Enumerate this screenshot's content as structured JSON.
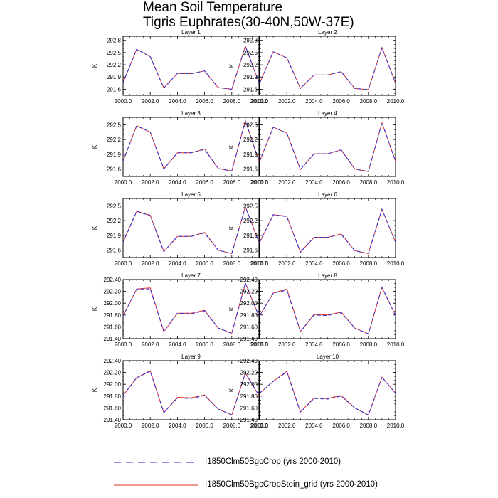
{
  "title": {
    "line1": "Mean Soil Temperature",
    "line2": "Tigris Euphrates(30-40N,50W-37E)"
  },
  "colors": {
    "series_crop": "#2a2ad6",
    "series_stein": "#e8322b",
    "axis": "#000000"
  },
  "legend": [
    {
      "label": "I1850Clm50BgcCrop (yrs 2000-2010)",
      "style": "dashed",
      "color": "#2a2ad6"
    },
    {
      "label": "I1850Clm50BgcCropStein_grid (yrs 2000-2010)",
      "style": "solid",
      "color": "#e8322b"
    }
  ],
  "chart_data": [
    {
      "type": "line",
      "title": "Layer 1",
      "ylabel": "K",
      "xlim": [
        2000,
        2010
      ],
      "ylim": [
        291.45,
        292.9
      ],
      "yticks": [
        "291.6",
        "291.9",
        "292.2",
        "292.5",
        "292.8"
      ],
      "ytick_values": [
        291.6,
        291.9,
        292.2,
        292.5,
        292.8
      ],
      "xticks": [
        "2000.0",
        "2002.0",
        "2004.0",
        "2006.0",
        "2008.0",
        "2010.0"
      ],
      "x": [
        2000,
        2001,
        2002,
        2003,
        2004,
        2005,
        2006,
        2007,
        2008,
        2009,
        2010
      ],
      "series": [
        {
          "name": "I1850Clm50BgcCrop (yrs 2000-2010)",
          "values": [
            291.76,
            292.58,
            292.4,
            291.63,
            291.99,
            291.98,
            292.05,
            291.64,
            291.6,
            292.66,
            291.76
          ]
        },
        {
          "name": "I1850Clm50BgcCropStein_grid (yrs 2000-2010)",
          "values": [
            291.76,
            292.58,
            292.4,
            291.63,
            291.99,
            291.98,
            292.05,
            291.64,
            291.6,
            292.66,
            291.76
          ]
        }
      ]
    },
    {
      "type": "line",
      "title": "Layer 2",
      "ylabel": "K",
      "xlim": [
        2000,
        2010
      ],
      "ylim": [
        291.45,
        292.9
      ],
      "yticks": [
        "291.6",
        "291.9",
        "292.2",
        "292.5",
        "292.8"
      ],
      "ytick_values": [
        291.6,
        291.9,
        292.2,
        292.5,
        292.8
      ],
      "xticks": [
        "2000.0",
        "2002.0",
        "2004.0",
        "2006.0",
        "2008.0",
        "2010.0"
      ],
      "x": [
        2000,
        2001,
        2002,
        2003,
        2004,
        2005,
        2006,
        2007,
        2008,
        2009,
        2010
      ],
      "series": [
        {
          "name": "I1850Clm50BgcCrop (yrs 2000-2010)",
          "values": [
            291.75,
            292.52,
            292.37,
            291.62,
            291.95,
            291.95,
            292.03,
            291.62,
            291.59,
            292.62,
            291.75
          ]
        },
        {
          "name": "I1850Clm50BgcCropStein_grid (yrs 2000-2010)",
          "values": [
            291.75,
            292.52,
            292.37,
            291.62,
            291.95,
            291.95,
            292.03,
            291.62,
            291.59,
            292.62,
            291.75
          ]
        }
      ]
    },
    {
      "type": "line",
      "title": "Layer 3",
      "ylabel": "K",
      "xlim": [
        2000,
        2010
      ],
      "ylim": [
        291.45,
        292.65
      ],
      "yticks": [
        "291.6",
        "291.9",
        "292.2",
        "292.5"
      ],
      "ytick_values": [
        291.6,
        291.9,
        292.2,
        292.5
      ],
      "xticks": [
        "2000.0",
        "2002.0",
        "2004.0",
        "2006.0",
        "2008.0",
        "2010.0"
      ],
      "x": [
        2000,
        2001,
        2002,
        2003,
        2004,
        2005,
        2006,
        2007,
        2008,
        2009,
        2010
      ],
      "series": [
        {
          "name": "I1850Clm50BgcCrop (yrs 2000-2010)",
          "values": [
            291.76,
            292.48,
            292.35,
            291.6,
            291.93,
            291.93,
            292.0,
            291.61,
            291.56,
            292.58,
            291.76
          ]
        },
        {
          "name": "I1850Clm50BgcCropStein_grid (yrs 2000-2010)",
          "values": [
            291.76,
            292.48,
            292.35,
            291.6,
            291.93,
            291.93,
            292.01,
            291.61,
            291.56,
            292.58,
            291.76
          ]
        }
      ]
    },
    {
      "type": "line",
      "title": "Layer 4",
      "ylabel": "K",
      "xlim": [
        2000,
        2010
      ],
      "ylim": [
        291.45,
        292.65
      ],
      "yticks": [
        "291.6",
        "291.9",
        "292.2",
        "292.5"
      ],
      "ytick_values": [
        291.6,
        291.9,
        292.2,
        292.5
      ],
      "xticks": [
        "2000.0",
        "2002.0",
        "2004.0",
        "2006.0",
        "2008.0",
        "2010.0"
      ],
      "x": [
        2000,
        2001,
        2002,
        2003,
        2004,
        2005,
        2006,
        2007,
        2008,
        2009,
        2010
      ],
      "series": [
        {
          "name": "I1850Clm50BgcCrop (yrs 2000-2010)",
          "values": [
            291.76,
            292.45,
            292.33,
            291.59,
            291.91,
            291.91,
            291.99,
            291.6,
            291.55,
            292.54,
            291.76
          ]
        },
        {
          "name": "I1850Clm50BgcCropStein_grid (yrs 2000-2010)",
          "values": [
            291.76,
            292.45,
            292.33,
            291.59,
            291.91,
            291.91,
            291.99,
            291.6,
            291.55,
            292.54,
            291.76
          ]
        }
      ]
    },
    {
      "type": "line",
      "title": "Layer 5",
      "ylabel": "K",
      "xlim": [
        2000,
        2010
      ],
      "ylim": [
        291.45,
        292.65
      ],
      "yticks": [
        "291.6",
        "291.9",
        "292.2",
        "292.5"
      ],
      "ytick_values": [
        291.6,
        291.9,
        292.2,
        292.5
      ],
      "xticks": [
        "2000.0",
        "2002.0",
        "2004.0",
        "2006.0",
        "2008.0",
        "2010.0"
      ],
      "x": [
        2000,
        2001,
        2002,
        2003,
        2004,
        2005,
        2006,
        2007,
        2008,
        2009,
        2010
      ],
      "series": [
        {
          "name": "I1850Clm50BgcCrop (yrs 2000-2010)",
          "values": [
            291.76,
            292.39,
            292.3,
            291.57,
            291.88,
            291.88,
            291.95,
            291.6,
            291.53,
            292.48,
            291.76
          ]
        },
        {
          "name": "I1850Clm50BgcCropStein_grid (yrs 2000-2010)",
          "values": [
            291.76,
            292.39,
            292.31,
            291.57,
            291.88,
            291.88,
            291.96,
            291.6,
            291.53,
            292.48,
            291.76
          ]
        }
      ]
    },
    {
      "type": "line",
      "title": "Layer 6",
      "ylabel": "K",
      "xlim": [
        2000,
        2010
      ],
      "ylim": [
        291.45,
        292.65
      ],
      "yticks": [
        "291.6",
        "291.9",
        "292.2",
        "292.5"
      ],
      "ytick_values": [
        291.6,
        291.9,
        292.2,
        292.5
      ],
      "xticks": [
        "2000.0",
        "2002.0",
        "2004.0",
        "2006.0",
        "2008.0",
        "2010.0"
      ],
      "x": [
        2000,
        2001,
        2002,
        2003,
        2004,
        2005,
        2006,
        2007,
        2008,
        2009,
        2010
      ],
      "series": [
        {
          "name": "I1850Clm50BgcCrop (yrs 2000-2010)",
          "values": [
            291.76,
            292.32,
            292.28,
            291.56,
            291.86,
            291.86,
            291.92,
            291.59,
            291.53,
            292.43,
            291.76
          ]
        },
        {
          "name": "I1850Clm50BgcCropStein_grid (yrs 2000-2010)",
          "values": [
            291.76,
            292.32,
            292.29,
            291.56,
            291.86,
            291.86,
            291.93,
            291.59,
            291.53,
            292.43,
            291.76
          ]
        }
      ]
    },
    {
      "type": "line",
      "title": "Layer 7",
      "ylabel": "K",
      "xlim": [
        2000,
        2010
      ],
      "ylim": [
        291.4,
        292.4
      ],
      "yticks": [
        "291.40",
        "291.60",
        "291.80",
        "292.00",
        "292.20",
        "292.40"
      ],
      "ytick_values": [
        291.4,
        291.6,
        291.8,
        292.0,
        292.2,
        292.4
      ],
      "xticks": [
        "2000.0",
        "2002.0",
        "2004.0",
        "2006.0",
        "2008.0",
        "2010.0"
      ],
      "x": [
        2000,
        2001,
        2002,
        2003,
        2004,
        2005,
        2006,
        2007,
        2008,
        2009,
        2010
      ],
      "series": [
        {
          "name": "I1850Clm50BgcCrop (yrs 2000-2010)",
          "values": [
            291.78,
            292.24,
            292.24,
            291.52,
            291.83,
            291.82,
            291.87,
            291.58,
            291.49,
            292.34,
            291.78
          ]
        },
        {
          "name": "I1850Clm50BgcCropStein_grid (yrs 2000-2010)",
          "values": [
            291.78,
            292.24,
            292.26,
            291.52,
            291.83,
            291.83,
            291.88,
            291.58,
            291.49,
            292.34,
            291.78
          ]
        }
      ]
    },
    {
      "type": "line",
      "title": "Layer 8",
      "ylabel": "K",
      "xlim": [
        2000,
        2010
      ],
      "ylim": [
        291.4,
        292.4
      ],
      "yticks": [
        "291.40",
        "291.60",
        "291.80",
        "292.00",
        "292.20",
        "292.40"
      ],
      "ytick_values": [
        291.4,
        291.6,
        291.8,
        292.0,
        292.2,
        292.4
      ],
      "xticks": [
        "2000.0",
        "2002.0",
        "2004.0",
        "2006.0",
        "2008.0",
        "2010.0"
      ],
      "x": [
        2000,
        2001,
        2002,
        2003,
        2004,
        2005,
        2006,
        2007,
        2008,
        2009,
        2010
      ],
      "series": [
        {
          "name": "I1850Clm50BgcCrop (yrs 2000-2010)",
          "values": [
            291.79,
            292.17,
            292.22,
            291.52,
            291.8,
            291.79,
            291.84,
            291.58,
            291.48,
            292.27,
            291.79
          ]
        },
        {
          "name": "I1850Clm50BgcCropStein_grid (yrs 2000-2010)",
          "values": [
            291.79,
            292.17,
            292.24,
            291.52,
            291.81,
            291.8,
            291.85,
            291.58,
            291.48,
            292.27,
            291.79
          ]
        }
      ]
    },
    {
      "type": "line",
      "title": "Layer 9",
      "ylabel": "K",
      "xlim": [
        2000,
        2010
      ],
      "ylim": [
        291.4,
        292.4
      ],
      "yticks": [
        "291.40",
        "291.60",
        "291.80",
        "292.00",
        "292.20",
        "292.40"
      ],
      "ytick_values": [
        291.4,
        291.6,
        291.8,
        292.0,
        292.2,
        292.4
      ],
      "xticks": [
        "2000.0",
        "2002.0",
        "2004.0",
        "2006.0",
        "2008.0",
        "2010.0"
      ],
      "x": [
        2000,
        2001,
        2002,
        2003,
        2004,
        2005,
        2006,
        2007,
        2008,
        2009,
        2010
      ],
      "series": [
        {
          "name": "I1850Clm50BgcCrop (yrs 2000-2010)",
          "values": [
            291.81,
            292.11,
            292.22,
            291.52,
            291.77,
            291.76,
            291.81,
            291.58,
            291.48,
            292.19,
            291.81
          ]
        },
        {
          "name": "I1850Clm50BgcCropStein_grid (yrs 2000-2010)",
          "values": [
            291.81,
            292.11,
            292.23,
            291.52,
            291.78,
            291.77,
            291.82,
            291.58,
            291.48,
            292.19,
            291.81
          ]
        }
      ]
    },
    {
      "type": "line",
      "title": "Layer 10",
      "ylabel": "K",
      "xlim": [
        2000,
        2010
      ],
      "ylim": [
        291.4,
        292.4
      ],
      "yticks": [
        "291.40",
        "291.60",
        "291.80",
        "292.00",
        "292.20",
        "292.40"
      ],
      "ytick_values": [
        291.4,
        291.6,
        291.8,
        292.0,
        292.2,
        292.4
      ],
      "xticks": [
        "2000.0",
        "2002.0",
        "2004.0",
        "2006.0",
        "2008.0",
        "2010.0"
      ],
      "x": [
        2000,
        2001,
        2002,
        2003,
        2004,
        2005,
        2006,
        2007,
        2008,
        2009,
        2010
      ],
      "series": [
        {
          "name": "I1850Clm50BgcCrop (yrs 2000-2010)",
          "values": [
            291.85,
            292.05,
            292.21,
            291.53,
            291.76,
            291.75,
            291.8,
            291.6,
            291.48,
            292.12,
            291.85
          ]
        },
        {
          "name": "I1850Clm50BgcCropStein_grid (yrs 2000-2010)",
          "values": [
            291.85,
            292.05,
            292.22,
            291.53,
            291.77,
            291.76,
            291.81,
            291.6,
            291.48,
            292.12,
            291.85
          ]
        }
      ]
    }
  ]
}
